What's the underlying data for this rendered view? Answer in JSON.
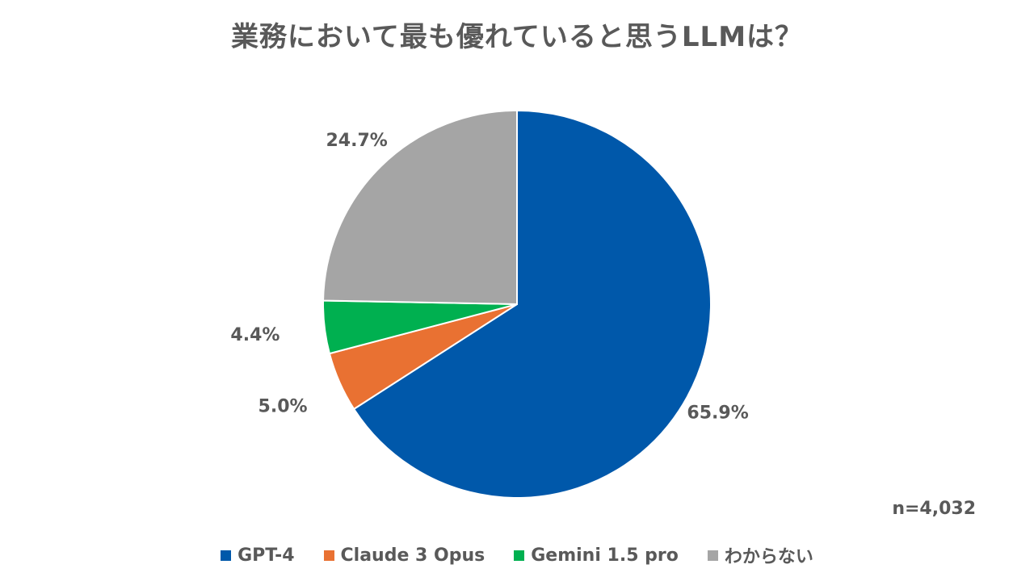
{
  "chart_data": {
    "type": "pie",
    "title": "業務において最も優れていると思うLLMは？",
    "categories": [
      "GPT-4",
      "Claude 3 Opus",
      "Gemini 1.5 pro",
      "わからない"
    ],
    "values": [
      65.9,
      5.0,
      4.4,
      24.7
    ],
    "value_labels": [
      "65.9%",
      "5.0%",
      "4.4%",
      "24.7%"
    ],
    "colors": [
      "#0058AA",
      "#E97132",
      "#00B050",
      "#A5A5A5"
    ],
    "start_angle": "12 o'clock",
    "direction": "clockwise",
    "legend_position": "bottom",
    "sample_size": "n=4,032"
  }
}
